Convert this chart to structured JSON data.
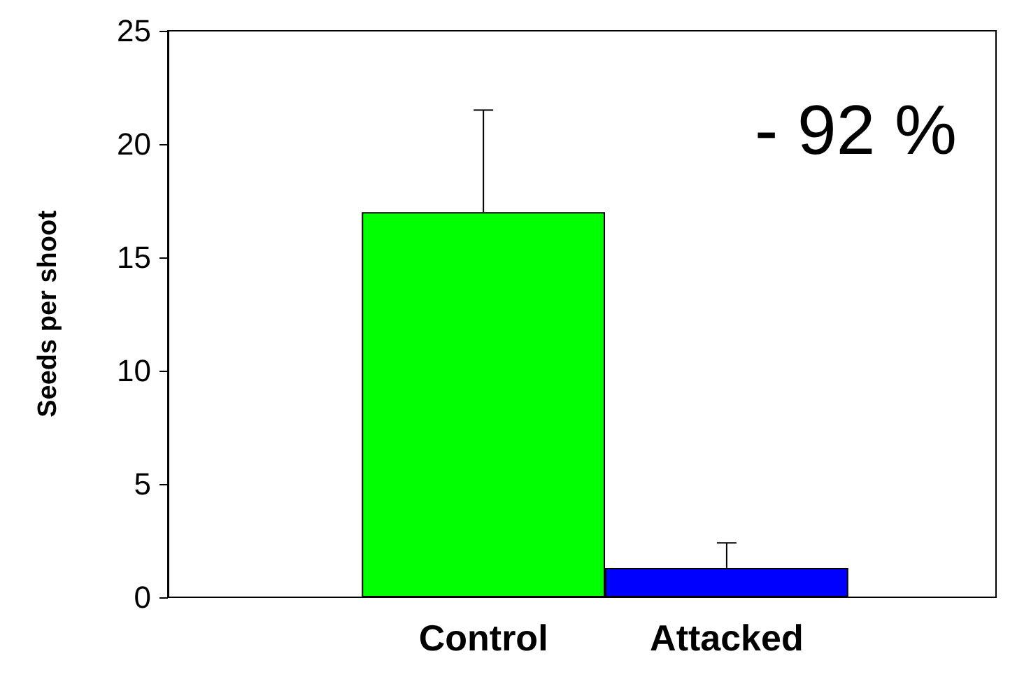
{
  "chart_data": {
    "type": "bar",
    "ylabel": "Seeds per shoot",
    "categories": [
      "Control",
      "Attacked"
    ],
    "values": [
      17.0,
      1.3
    ],
    "colors": [
      "#00ff00",
      "#0000ff"
    ],
    "errors": [
      [
        17.0,
        21.5
      ],
      [
        1.3,
        2.4
      ]
    ],
    "ylim": [
      0,
      25
    ],
    "yticks": [
      0,
      5,
      10,
      15,
      20,
      25
    ],
    "grid": false,
    "annotations": [
      "- 92 %"
    ]
  }
}
